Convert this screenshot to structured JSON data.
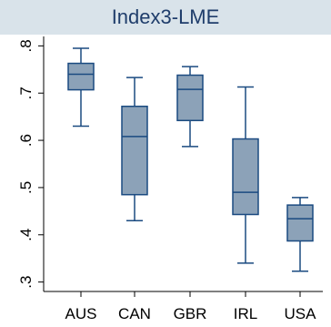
{
  "chart_data": {
    "type": "box",
    "title": "Index3-LME",
    "xlabel": "",
    "ylabel": "",
    "ylim": [
      0.28,
      0.82
    ],
    "yticks": [
      0.3,
      0.4,
      0.5,
      0.6,
      0.7,
      0.8
    ],
    "ytick_labels": [
      ".3",
      ".4",
      ".5",
      ".6",
      ".7",
      ".8"
    ],
    "grid": false,
    "colors": {
      "box_fill": "#8ca2b8",
      "box_stroke": "#1a4a80",
      "title_band": "#d9e3ea",
      "title_text": "#1f3d6b"
    },
    "categories": [
      "AUS",
      "CAN",
      "GBR",
      "IRL",
      "USA"
    ],
    "boxes": [
      {
        "min": 0.63,
        "q1": 0.707,
        "median": 0.74,
        "q3": 0.763,
        "max": 0.795
      },
      {
        "min": 0.43,
        "q1": 0.485,
        "median": 0.608,
        "q3": 0.672,
        "max": 0.733
      },
      {
        "min": 0.587,
        "q1": 0.642,
        "median": 0.708,
        "q3": 0.738,
        "max": 0.756
      },
      {
        "min": 0.34,
        "q1": 0.443,
        "median": 0.49,
        "q3": 0.603,
        "max": 0.713
      },
      {
        "min": 0.323,
        "q1": 0.387,
        "median": 0.434,
        "q3": 0.463,
        "max": 0.479
      }
    ]
  }
}
